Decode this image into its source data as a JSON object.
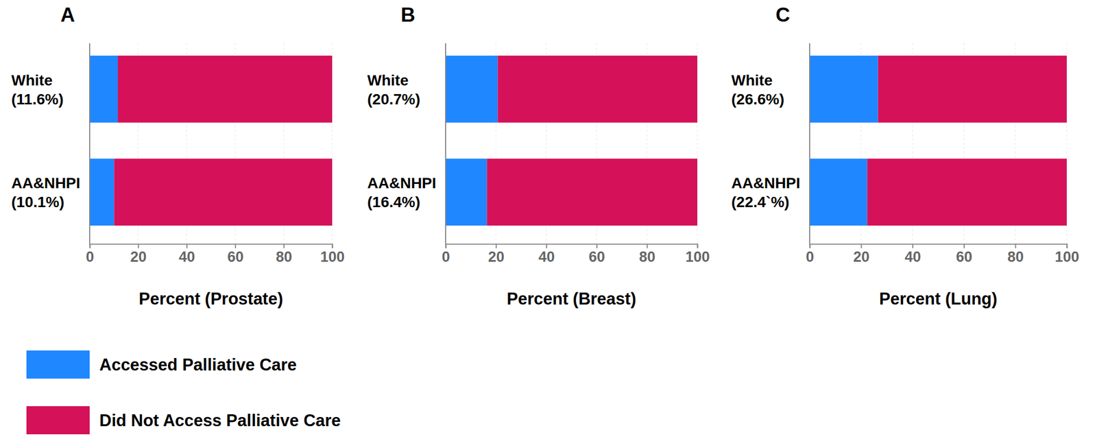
{
  "chart_data": [
    {
      "type": "bar",
      "title": "A",
      "orientation": "horizontal",
      "stacked": true,
      "grid": true,
      "legend": "bottom-left",
      "x_label": "Percent (Prostate)",
      "categories": [
        "White (11.6%)",
        "AA&NHPI (10.1%)"
      ],
      "series": [
        {
          "name": "Accessed Palliative Care",
          "color": "#1f87ff",
          "values": [
            11.6,
            10.1
          ]
        },
        {
          "name": "Did Not Access Palliative Care",
          "color": "#d41159",
          "values": [
            88.4,
            89.9
          ]
        }
      ],
      "xlim": [
        0,
        100
      ],
      "xticks": [
        0,
        20,
        40,
        60,
        80,
        100
      ]
    },
    {
      "type": "bar",
      "title": "B",
      "orientation": "horizontal",
      "stacked": true,
      "grid": true,
      "x_label": "Percent (Breast)",
      "categories": [
        "White (20.7%)",
        "AA&NHPI (16.4%)"
      ],
      "series": [
        {
          "color": "#1f87ff",
          "values": [
            20.7,
            16.4
          ]
        },
        {
          "color": "#d41159",
          "values": [
            79.3,
            83.6
          ]
        }
      ],
      "xlim": [
        0,
        100
      ],
      "xticks": [
        0,
        20,
        40,
        60,
        80,
        100
      ]
    },
    {
      "type": "bar",
      "title": "C",
      "orientation": "horizontal",
      "stacked": true,
      "grid": true,
      "x_label": "Percent (Lung)",
      "categories": [
        "White (26.6%)",
        "AA&NHPI (22.4`%)"
      ],
      "series": [
        {
          "color": "#1f87ff",
          "values": [
            26.6,
            22.4
          ]
        },
        {
          "color": "#d41159",
          "values": [
            73.4,
            77.6
          ]
        }
      ],
      "xlim": [
        0,
        100
      ],
      "xticks": [
        0,
        20,
        40,
        60,
        80,
        100
      ]
    }
  ]
}
